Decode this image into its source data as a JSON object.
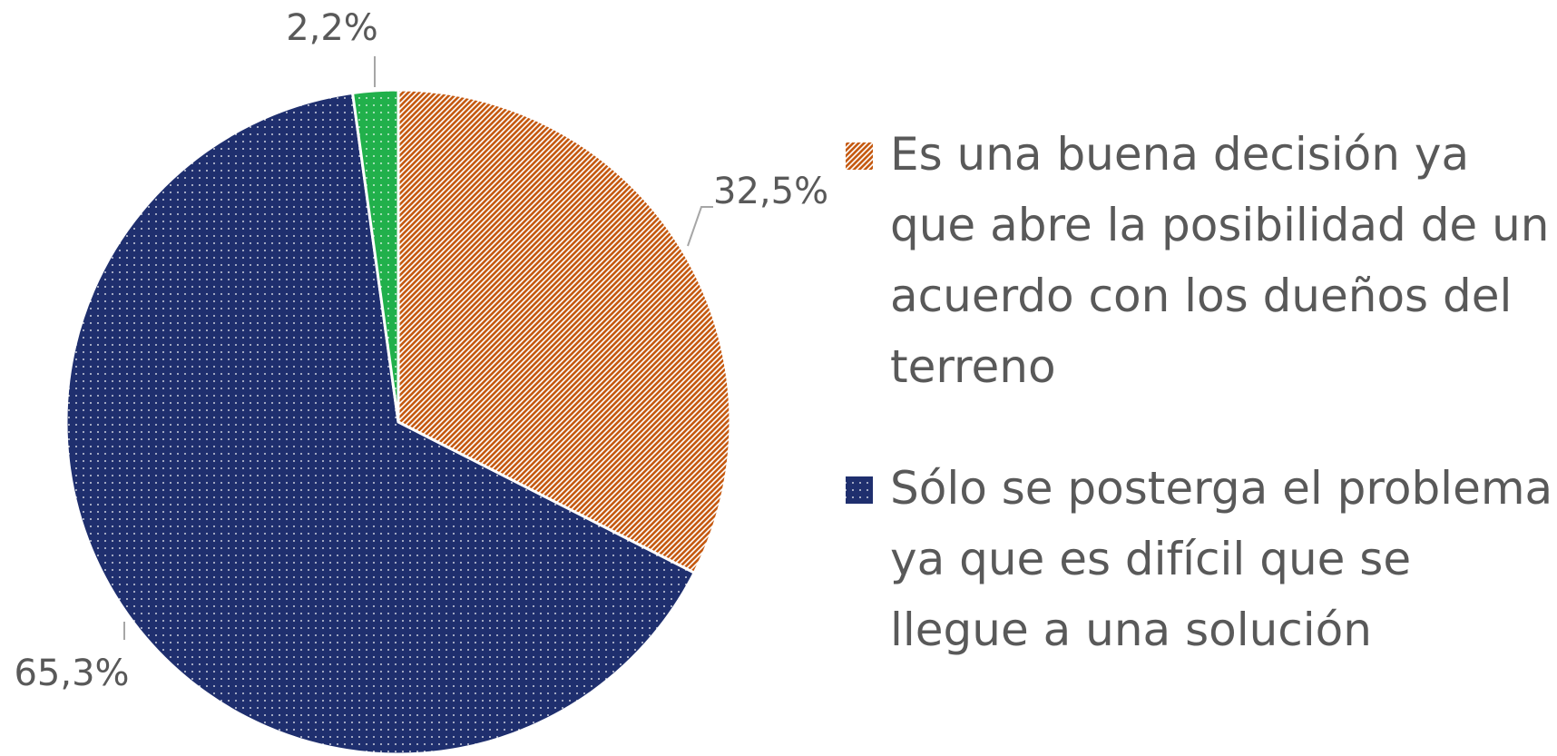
{
  "chart_data": {
    "type": "pie",
    "categories": [
      "Es una buena decisión ya que abre la posibilidad de un acuerdo con los dueños del terreno",
      "Sólo se posterga el problema ya que es difícil que se llegue a una solución",
      null
    ],
    "values": [
      32.5,
      65.3,
      2.2
    ],
    "value_labels": [
      "32,5%",
      "65,3%",
      "2,2%"
    ],
    "colors": [
      "#c55a11",
      "#1f2f6e",
      "#21b04b"
    ],
    "patterns": [
      "diagonal",
      "dots",
      "dots"
    ],
    "legend": "right"
  }
}
